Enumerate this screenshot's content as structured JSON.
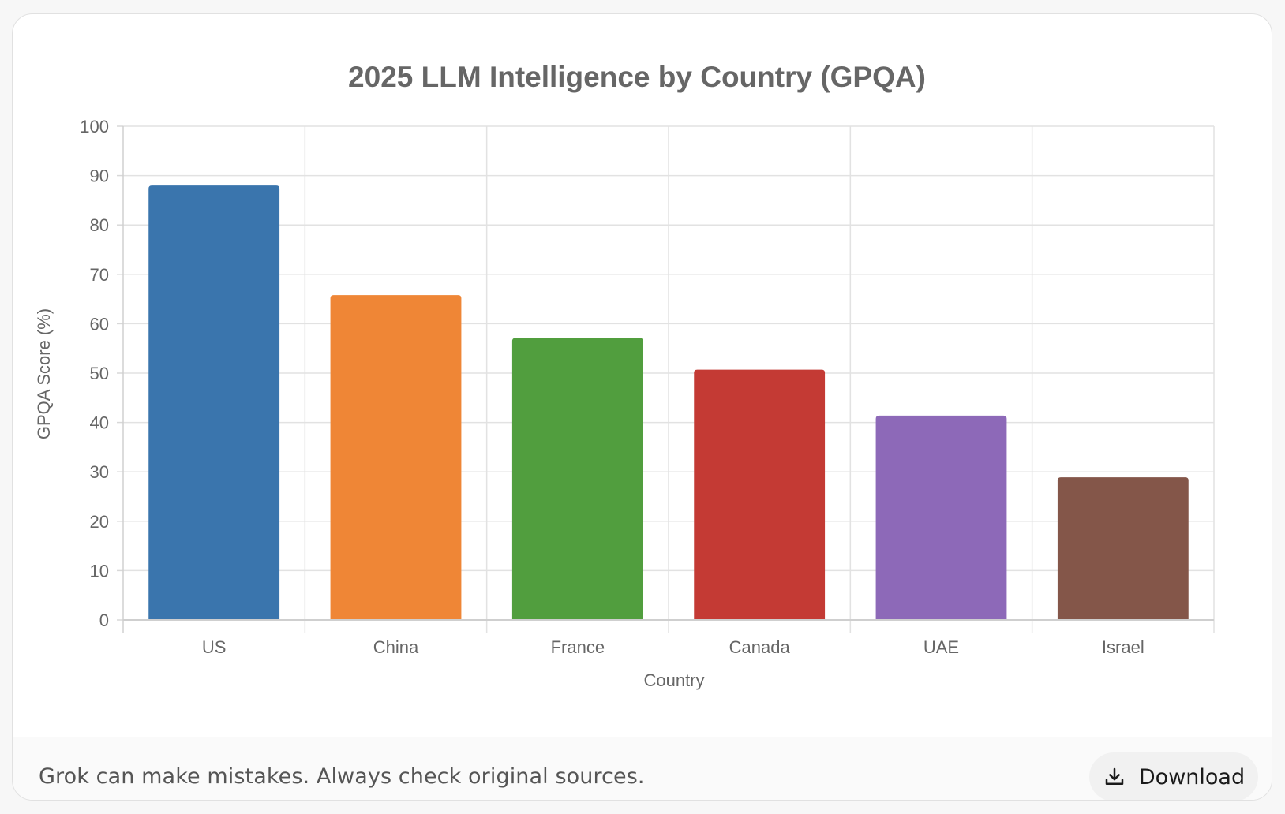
{
  "chart_data": {
    "type": "bar",
    "title": "2025 LLM Intelligence by Country (GPQA)",
    "xlabel": "Country",
    "ylabel": "GPQA Score (%)",
    "categories": [
      "US",
      "China",
      "France",
      "Canada",
      "UAE",
      "Israel"
    ],
    "values": [
      88,
      65.8,
      57.1,
      50.7,
      41.4,
      28.9
    ],
    "colors": [
      "#3a75ad",
      "#ef8636",
      "#519e3e",
      "#c43a34",
      "#8d69b8",
      "#845649"
    ],
    "ylim": [
      0,
      100
    ],
    "yticks": [
      "0",
      "10",
      "20",
      "30",
      "40",
      "50",
      "60",
      "70",
      "80",
      "90",
      "100"
    ],
    "grid": true,
    "legend": "none"
  },
  "footer": {
    "note": "Grok can make mistakes. Always check original sources.",
    "download_label": "Download",
    "download_icon": "download-icon"
  }
}
